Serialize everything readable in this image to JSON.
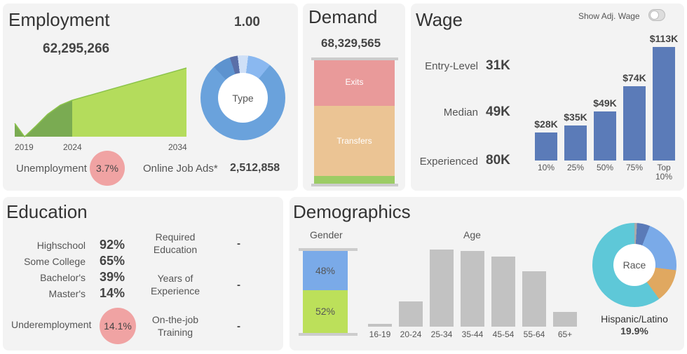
{
  "employment": {
    "title": "Employment",
    "ratio": "1.00",
    "total": "62,295,266",
    "years": [
      "2019",
      "2024",
      "2034"
    ],
    "unemployment_label": "Unemployment",
    "unemployment_value": "3.7%",
    "online_ads_label": "Online Job Ads*",
    "online_ads_value": "2,512,858",
    "donut_label": "Type"
  },
  "demand": {
    "title": "Demand",
    "total": "68,329,565",
    "segments": [
      {
        "label": "Exits",
        "color": "#e99a9a"
      },
      {
        "label": "Transfers",
        "color": "#ebc494"
      },
      {
        "label": "",
        "color": "#9ccc65"
      }
    ]
  },
  "wage": {
    "title": "Wage",
    "toggle_label": "Show Adj. Wage",
    "toggle_on": false,
    "levels": [
      {
        "label": "Entry-Level",
        "value": "31K"
      },
      {
        "label": "Median",
        "value": "49K"
      },
      {
        "label": "Experienced",
        "value": "80K"
      }
    ],
    "chart_data": {
      "type": "bar",
      "categories": [
        "10%",
        "25%",
        "50%",
        "75%",
        "Top 10%"
      ],
      "values": [
        28,
        35,
        49,
        74,
        113
      ],
      "labels": [
        "$28K",
        "$35K",
        "$49K",
        "$74K",
        "$113K"
      ],
      "unit": "$K",
      "color": "#5b7bb8"
    }
  },
  "education": {
    "title": "Education",
    "levels": [
      {
        "label": "Highschool",
        "value": "92%"
      },
      {
        "label": "Some College",
        "value": "65%"
      },
      {
        "label": "Bachelor's",
        "value": "39%"
      },
      {
        "label": "Master's",
        "value": "14%"
      }
    ],
    "underemployment_label": "Underemployment",
    "underemployment_value": "14.1%",
    "requirements": [
      {
        "label": "Required Education",
        "value": "-"
      },
      {
        "label": "Years of Experience",
        "value": "-"
      },
      {
        "label": "On-the-job Training",
        "value": "-"
      }
    ]
  },
  "demographics": {
    "title": "Demographics",
    "gender_label": "Gender",
    "gender": [
      {
        "value": "48%",
        "color": "#7aaae8"
      },
      {
        "value": "52%",
        "color": "#bce05a"
      }
    ],
    "age_label": "Age",
    "chart_data": {
      "type": "bar",
      "categories": [
        "16-19",
        "20-24",
        "25-34",
        "35-44",
        "45-54",
        "55-64",
        "65+"
      ],
      "values": [
        0.9,
        7.9,
        24.0,
        23.6,
        21.8,
        17.2,
        4.6
      ],
      "color": "#c2c2c2"
    },
    "race_label": "Race",
    "race_highlight_label": "Hispanic/Latino",
    "race_highlight_value": "19.9%"
  }
}
